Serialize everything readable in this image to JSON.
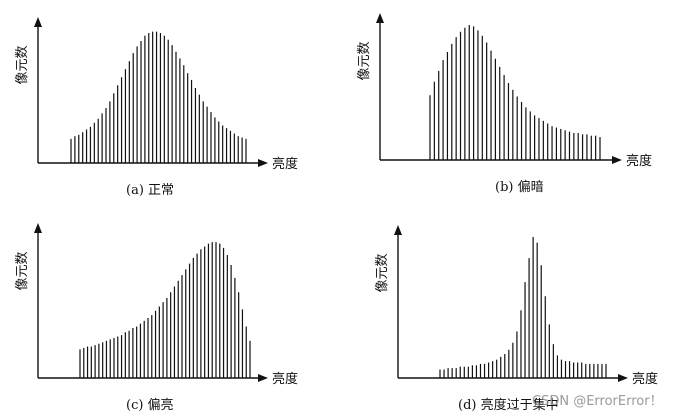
{
  "chart_data": [
    {
      "type": "bar",
      "ylabel": "像元数",
      "xlabel": "亮度",
      "caption": "(a) 正常",
      "grid": false,
      "legend": "none",
      "values": [
        18,
        20,
        21,
        23,
        25,
        27,
        30,
        33,
        37,
        41,
        46,
        52,
        58,
        64,
        70,
        76,
        82,
        87,
        91,
        95,
        97,
        98,
        98,
        97,
        95,
        92,
        88,
        83,
        78,
        73,
        67,
        62,
        56,
        51,
        46,
        42,
        38,
        34,
        31,
        28,
        26,
        24,
        22,
        20,
        19,
        18
      ]
    },
    {
      "type": "bar",
      "ylabel": "像元数",
      "xlabel": "亮度",
      "caption": "(b) 偏暗",
      "grid": false,
      "legend": "none",
      "values": [
        48,
        58,
        66,
        74,
        80,
        86,
        91,
        95,
        98,
        100,
        99,
        96,
        92,
        87,
        81,
        75,
        69,
        63,
        57,
        52,
        47,
        43,
        39,
        36,
        33,
        31,
        29,
        27,
        25,
        24,
        23,
        22,
        21,
        20,
        20,
        19,
        19,
        18,
        18,
        17
      ]
    },
    {
      "type": "bar",
      "ylabel": "像元数",
      "xlabel": "亮度",
      "caption": "(c) 偏亮",
      "grid": false,
      "legend": "none",
      "values": [
        20,
        21,
        22,
        22,
        23,
        24,
        25,
        26,
        27,
        28,
        29,
        30,
        32,
        33,
        35,
        36,
        38,
        40,
        42,
        44,
        47,
        50,
        53,
        56,
        60,
        64,
        68,
        72,
        76,
        80,
        84,
        87,
        90,
        92,
        94,
        95,
        95,
        94,
        91,
        86,
        79,
        70,
        60,
        48,
        36,
        26
      ]
    },
    {
      "type": "bar",
      "ylabel": "像元数",
      "xlabel": "亮度",
      "caption": "(d) 亮度过于集中",
      "grid": false,
      "legend": "none",
      "values": [
        6,
        6,
        7,
        7,
        7,
        8,
        8,
        8,
        9,
        9,
        10,
        10,
        11,
        12,
        13,
        15,
        17,
        20,
        25,
        33,
        48,
        68,
        85,
        100,
        96,
        80,
        58,
        38,
        24,
        16,
        13,
        12,
        12,
        11,
        11,
        11,
        10,
        10,
        10,
        10,
        10,
        10
      ]
    }
  ],
  "watermark": "CSDN @ErrorError！"
}
